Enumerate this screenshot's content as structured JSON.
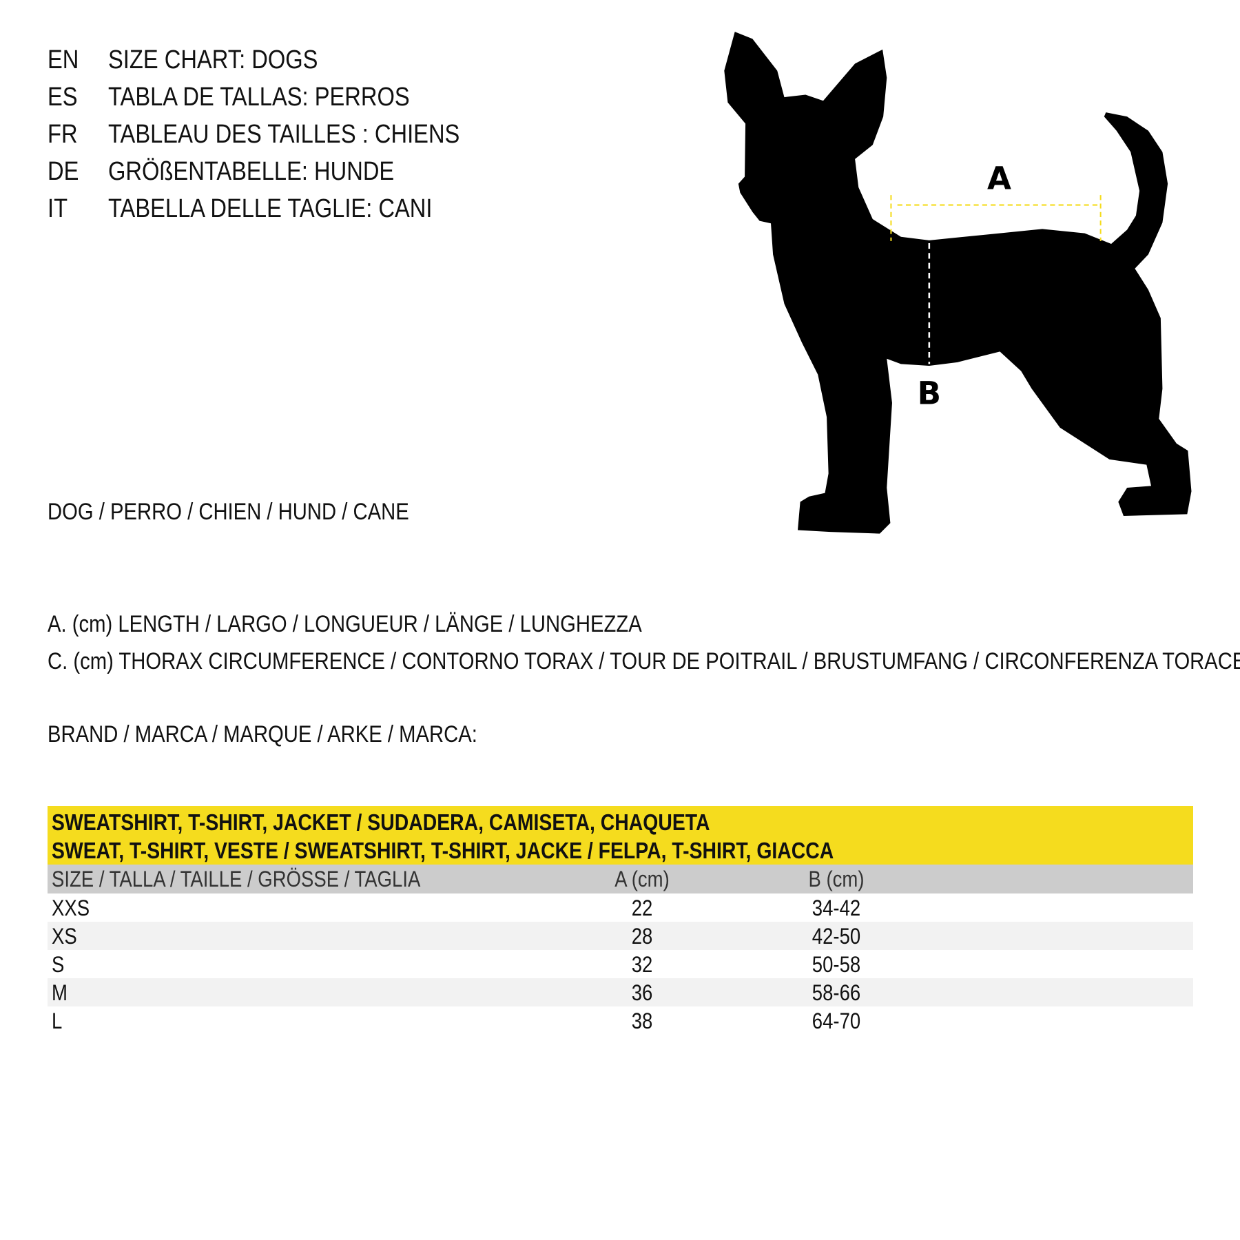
{
  "titles": [
    {
      "code": "EN",
      "text": "SIZE CHART: DOGS"
    },
    {
      "code": "ES",
      "text": "TABLA DE TALLAS: PERROS"
    },
    {
      "code": "FR",
      "text": "TABLEAU DES TAILLES : CHIENS"
    },
    {
      "code": "DE",
      "text": "GRÖßENTABELLE: HUNDE"
    },
    {
      "code": "IT",
      "text": "TABELLA DELLE TAGLIE: CANI"
    }
  ],
  "animal": "DOG / PERRO / CHIEN / HUND / CANE",
  "legend": {
    "a": "A. (cm) LENGTH / LARGO / LONGUEUR / LÄNGE / LUNGHEZZA",
    "c": "C. (cm) THORAX CIRCUMFERENCE / CONTORNO TORAX / TOUR DE POITRAIL / BRUSTUMFANG / CIRCONFERENZA TORACE"
  },
  "brand": "BRAND / MARCA / MARQUE / ARKE / MARCA:",
  "diagram": {
    "label_a": "A",
    "label_b": "B",
    "accent_color": "#f5dc1e",
    "silhouette_color": "#000000"
  },
  "table": {
    "band_line1": "SWEATSHIRT, T-SHIRT, JACKET / SUDADERA, CAMISETA, CHAQUETA",
    "band_line2": "SWEAT, T-SHIRT, VESTE / SWEATSHIRT, T-SHIRT, JACKE / FELPA, T-SHIRT, GIACCA",
    "headers": [
      "SIZE / TALLA / TAILLE / GRÖSSE / TAGLIA",
      "A (cm)",
      "B (cm)"
    ],
    "rows": [
      [
        "XXS",
        "22",
        "34-42"
      ],
      [
        "XS",
        "28",
        "42-50"
      ],
      [
        "S",
        "32",
        "50-58"
      ],
      [
        "M",
        "36",
        "58-66"
      ],
      [
        "L",
        "38",
        "64-70"
      ]
    ]
  }
}
